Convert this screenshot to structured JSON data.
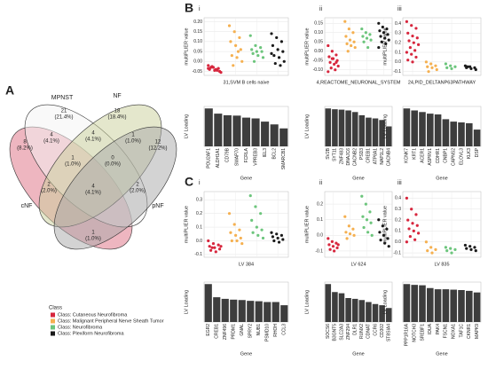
{
  "panel_labels": [
    "A",
    "B",
    "C"
  ],
  "legend": {
    "title": "Class",
    "entries": [
      {
        "name": "Class: Cutaneous Neurofibroma",
        "color": "#d7263d"
      },
      {
        "name": "Class: Malignant Peripheral Nerve Sheath Tumor",
        "color": "#f5b050"
      },
      {
        "name": "Class: Neurofibroma",
        "color": "#6cc57c"
      },
      {
        "name": "Class: Plexiform Neurofibroma",
        "color": "#1a1a1a"
      }
    ]
  },
  "chart_data": [
    {
      "type": "venn",
      "sets": [
        "MPNST",
        "NF",
        "cNF",
        "pNF"
      ],
      "regions": [
        {
          "count": 21,
          "percent_label": "(21.4%)"
        },
        {
          "count": 18,
          "percent_label": "(18.4%)"
        },
        {
          "count": 8,
          "percent_label": "(8.2%)"
        },
        {
          "count": 12,
          "percent_label": "(12.2%)"
        },
        {
          "count": 4,
          "percent_label": "(4.1%)"
        },
        {
          "count": 4,
          "percent_label": "(4.1%)"
        },
        {
          "count": 1,
          "percent_label": "(1.0%)"
        },
        {
          "count": 1,
          "percent_label": "(1.0%)"
        },
        {
          "count": 0,
          "percent_label": "(0.0%)"
        },
        {
          "count": 2,
          "percent_label": "(2.0%)"
        },
        {
          "count": 4,
          "percent_label": "(4.1%)"
        },
        {
          "count": 2,
          "percent_label": "(2.0%)"
        },
        {
          "count": 1,
          "percent_label": "(1.0%)"
        }
      ]
    },
    {
      "type": "strip",
      "panel": "i",
      "xlabel": "31,SVM B cells naive",
      "ylabel": "multiPLIER value",
      "ylim": [
        -0.07,
        0.22
      ],
      "yticks": [
        {
          "value": -0.05,
          "label": "-0.05"
        },
        {
          "value": 0,
          "label": "0.00"
        },
        {
          "value": 0.05,
          "label": "0.05"
        },
        {
          "value": 0.1,
          "label": "0.10"
        },
        {
          "value": 0.15,
          "label": "0.15"
        },
        {
          "value": 0.2,
          "label": "0.20"
        }
      ],
      "series": [
        {
          "color": "#d7263d",
          "values": [
            -0.02,
            -0.03,
            -0.035,
            -0.04,
            -0.045,
            -0.05,
            -0.03,
            -0.04,
            -0.055,
            -0.025,
            -0.045,
            -0.035
          ]
        },
        {
          "color": "#f5b050",
          "values": [
            0.18,
            0.15,
            0.12,
            0.1,
            0.08,
            0.06,
            0.03,
            0.02,
            0.0,
            -0.02,
            0.05
          ]
        },
        {
          "color": "#6cc57c",
          "values": [
            0.13,
            0.08,
            0.07,
            0.06,
            0.05,
            0.05,
            0.04,
            0.03,
            0.02,
            0.0
          ]
        },
        {
          "color": "#1a1a1a",
          "values": [
            0.14,
            0.12,
            0.1,
            0.08,
            0.06,
            0.05,
            0.03,
            0.02,
            0.0,
            -0.01,
            -0.02,
            0.04
          ]
        }
      ]
    },
    {
      "type": "strip",
      "panel": "ii",
      "xlabel": "4,REACTOME_NEURONAL_SYSTEM",
      "ylabel": "multiPLIER value",
      "ylim": [
        -0.13,
        0.18
      ],
      "yticks": [
        {
          "value": -0.1,
          "label": "-0.10"
        },
        {
          "value": -0.05,
          "label": "-0.05"
        },
        {
          "value": 0,
          "label": "0.00"
        },
        {
          "value": 0.05,
          "label": "0.05"
        },
        {
          "value": 0.1,
          "label": "0.10"
        },
        {
          "value": 0.15,
          "label": "0.15"
        }
      ],
      "series": [
        {
          "color": "#d7263d",
          "values": [
            0.03,
            0.0,
            -0.02,
            -0.03,
            -0.04,
            -0.05,
            -0.06,
            -0.07,
            -0.08,
            -0.09,
            -0.1,
            -0.11,
            -0.04,
            -0.06
          ]
        },
        {
          "color": "#f5b050",
          "values": [
            0.16,
            0.12,
            0.1,
            0.08,
            0.06,
            0.05,
            0.04,
            0.03,
            0.02,
            0.0
          ]
        },
        {
          "color": "#6cc57c",
          "values": [
            0.12,
            0.1,
            0.09,
            0.08,
            0.07,
            0.06,
            0.05,
            0.02
          ]
        },
        {
          "color": "#1a1a1a",
          "values": [
            0.15,
            0.13,
            0.12,
            0.11,
            0.1,
            0.09,
            0.08,
            0.07,
            0.06,
            0.05,
            0.04,
            0.02
          ]
        }
      ]
    },
    {
      "type": "strip",
      "panel": "iii",
      "xlabel": "24,PID_DELTANP63PATHWAY",
      "ylabel": "multiPLIER value",
      "ylim": [
        -0.14,
        0.46
      ],
      "yticks": [
        -0.1,
        {
          "value": 0,
          "label": "0.0"
        },
        0.1,
        0.2,
        0.3,
        0.4
      ],
      "series": [
        {
          "color": "#d7263d",
          "values": [
            0.42,
            0.38,
            0.35,
            0.3,
            0.27,
            0.25,
            0.22,
            0.2,
            0.18,
            0.15,
            0.12,
            0.1,
            0.08,
            0.05,
            0.02,
            0.0
          ]
        },
        {
          "color": "#f5b050",
          "values": [
            0.0,
            -0.02,
            -0.04,
            -0.05,
            -0.06,
            -0.08,
            -0.1
          ]
        },
        {
          "color": "#6cc57c",
          "values": [
            -0.02,
            -0.04,
            -0.05,
            -0.06,
            -0.07
          ]
        },
        {
          "color": "#1a1a1a",
          "values": [
            -0.04,
            -0.05,
            -0.06,
            -0.06,
            -0.07,
            -0.08,
            -0.05
          ]
        }
      ]
    },
    {
      "type": "bar",
      "xlabel": "Gene",
      "ylabel": "LV Loading",
      "color": "#3d3d3d",
      "ylim": [
        0,
        1
      ],
      "categories": [
        "POU2AF1",
        "ALDH1A1",
        "CD79B",
        "SWAP70",
        "FCRLA",
        "VPREB3",
        "IEL3",
        "BCL2",
        "SMARCB1"
      ],
      "values": [
        0.95,
        0.82,
        0.78,
        0.77,
        0.72,
        0.7,
        0.62,
        0.55,
        0.45
      ]
    },
    {
      "type": "bar",
      "xlabel": "Gene",
      "ylabel": "LV Loading",
      "color": "#3d3d3d",
      "ylim": [
        0,
        1
      ],
      "categories": [
        "SV2B",
        "SYT11",
        "ZNF483",
        "DNAJC6",
        "CACNB2",
        "PSD3",
        "CREB1",
        "ATP8A1",
        "NAP1L2",
        "CACNB4"
      ],
      "values": [
        0.95,
        0.93,
        0.92,
        0.9,
        0.86,
        0.78,
        0.72,
        0.7,
        0.66,
        0.5
      ]
    },
    {
      "type": "bar",
      "xlabel": "Gene",
      "ylabel": "LV Loading",
      "color": "#3d3d3d",
      "ylim": [
        0,
        1
      ],
      "categories": [
        "KCNK7",
        "KRT1",
        "ACER1",
        "ASPRV1",
        "CDHR1",
        "CNBP1",
        "CAPNS2",
        "ELOVL3",
        "KLK3",
        "DSP"
      ],
      "values": [
        0.95,
        0.9,
        0.86,
        0.82,
        0.8,
        0.68,
        0.62,
        0.6,
        0.58,
        0.42
      ]
    },
    {
      "type": "strip",
      "panel": "i",
      "xlabel": "LV 384",
      "ylabel": "multiPLIER value",
      "ylim": [
        -0.12,
        0.36
      ],
      "yticks": [
        -0.1,
        {
          "value": 0,
          "label": "0.0"
        },
        0.1,
        0.2,
        0.3
      ],
      "series": [
        {
          "color": "#d7263d",
          "values": [
            0.0,
            -0.02,
            -0.03,
            -0.04,
            -0.05,
            -0.06,
            -0.07,
            -0.08,
            -0.04,
            -0.05
          ]
        },
        {
          "color": "#f5b050",
          "values": [
            0.2,
            0.12,
            0.08,
            0.06,
            0.04,
            0.02,
            0.0,
            0.0,
            -0.02
          ]
        },
        {
          "color": "#6cc57c",
          "values": [
            0.33,
            0.25,
            0.2,
            0.15,
            0.1,
            0.08,
            0.06,
            0.04,
            0.02
          ]
        },
        {
          "color": "#1a1a1a",
          "values": [
            0.06,
            0.05,
            0.04,
            0.03,
            0.02,
            0.01,
            0.0,
            -0.01
          ]
        }
      ]
    },
    {
      "type": "strip",
      "panel": "ii",
      "xlabel": "LV 624",
      "ylabel": "multiPLIER value",
      "ylim": [
        -0.14,
        0.28
      ],
      "yticks": [
        -0.1,
        {
          "value": 0,
          "label": "0.0"
        },
        0.1,
        0.2
      ],
      "series": [
        {
          "color": "#d7263d",
          "values": [
            -0.02,
            -0.04,
            -0.05,
            -0.06,
            -0.07,
            -0.08,
            -0.09,
            -0.1,
            -0.06
          ]
        },
        {
          "color": "#f5b050",
          "values": [
            0.12,
            0.06,
            0.04,
            0.02,
            0.01,
            0.0,
            -0.02
          ]
        },
        {
          "color": "#6cc57c",
          "values": [
            0.25,
            0.2,
            0.15,
            0.12,
            0.1,
            0.08,
            0.05,
            0.02,
            0.0
          ]
        },
        {
          "color": "#1a1a1a",
          "values": [
            0.1,
            0.06,
            0.04,
            0.02,
            0.0,
            -0.02,
            -0.03,
            -0.05,
            -0.07
          ]
        }
      ]
    },
    {
      "type": "strip",
      "panel": "iii",
      "xlabel": "LV 835",
      "ylabel": "multiPLIER value",
      "ylim": [
        -0.14,
        0.46
      ],
      "yticks": [
        -0.1,
        {
          "value": 0,
          "label": "0.0"
        },
        0.1,
        0.2,
        0.3,
        0.4
      ],
      "series": [
        {
          "color": "#d7263d",
          "values": [
            0.4,
            0.3,
            0.25,
            0.2,
            0.17,
            0.15,
            0.12,
            0.1,
            0.08,
            0.05,
            0.02,
            0.0
          ]
        },
        {
          "color": "#f5b050",
          "values": [
            0.0,
            -0.05,
            -0.07,
            -0.08,
            -0.1
          ]
        },
        {
          "color": "#6cc57c",
          "values": [
            -0.05,
            -0.06,
            -0.07,
            -0.08,
            -0.1
          ]
        },
        {
          "color": "#1a1a1a",
          "values": [
            -0.03,
            -0.04,
            -0.05,
            -0.06,
            -0.07,
            -0.08
          ]
        }
      ]
    },
    {
      "type": "bar",
      "xlabel": "Gene",
      "ylabel": "LV Loading",
      "color": "#3d3d3d",
      "ylim": [
        0,
        1
      ],
      "categories": [
        "EGR2",
        "CREB1",
        "ZNF496",
        "PRDM1",
        "GNAL",
        "SPRY2",
        "NUB1",
        "PSMD10",
        "RHOH",
        "CCL3"
      ],
      "values": [
        0.95,
        0.62,
        0.58,
        0.56,
        0.55,
        0.53,
        0.52,
        0.5,
        0.5,
        0.42
      ]
    },
    {
      "type": "bar",
      "xlabel": "Gene",
      "ylabel": "LV Loading",
      "color": "#3d3d3d",
      "ylim": [
        0,
        1
      ],
      "categories": [
        "SOCS6",
        "B3GNT5",
        "SLC2A3",
        "ZNF294",
        "DLR1",
        "RUNX2",
        "CDNAT",
        "CCR6",
        "CD302",
        "ST8SIA4"
      ],
      "values": [
        0.95,
        0.75,
        0.72,
        0.6,
        0.58,
        0.55,
        0.5,
        0.45,
        0.42,
        0.35
      ]
    },
    {
      "type": "bar",
      "xlabel": "Gene",
      "ylabel": "LV Loading",
      "color": "#3d3d3d",
      "ylim": [
        0,
        1
      ],
      "categories": [
        "PPP1R16A",
        "NOTCH3",
        "SREBF1",
        "IDUA",
        "PAK4",
        "FSCN1",
        "NOXA1",
        "TAF1C",
        "CKNR1",
        "MAPK9"
      ],
      "values": [
        0.95,
        0.93,
        0.92,
        0.85,
        0.82,
        0.82,
        0.81,
        0.8,
        0.78,
        0.74
      ]
    }
  ]
}
